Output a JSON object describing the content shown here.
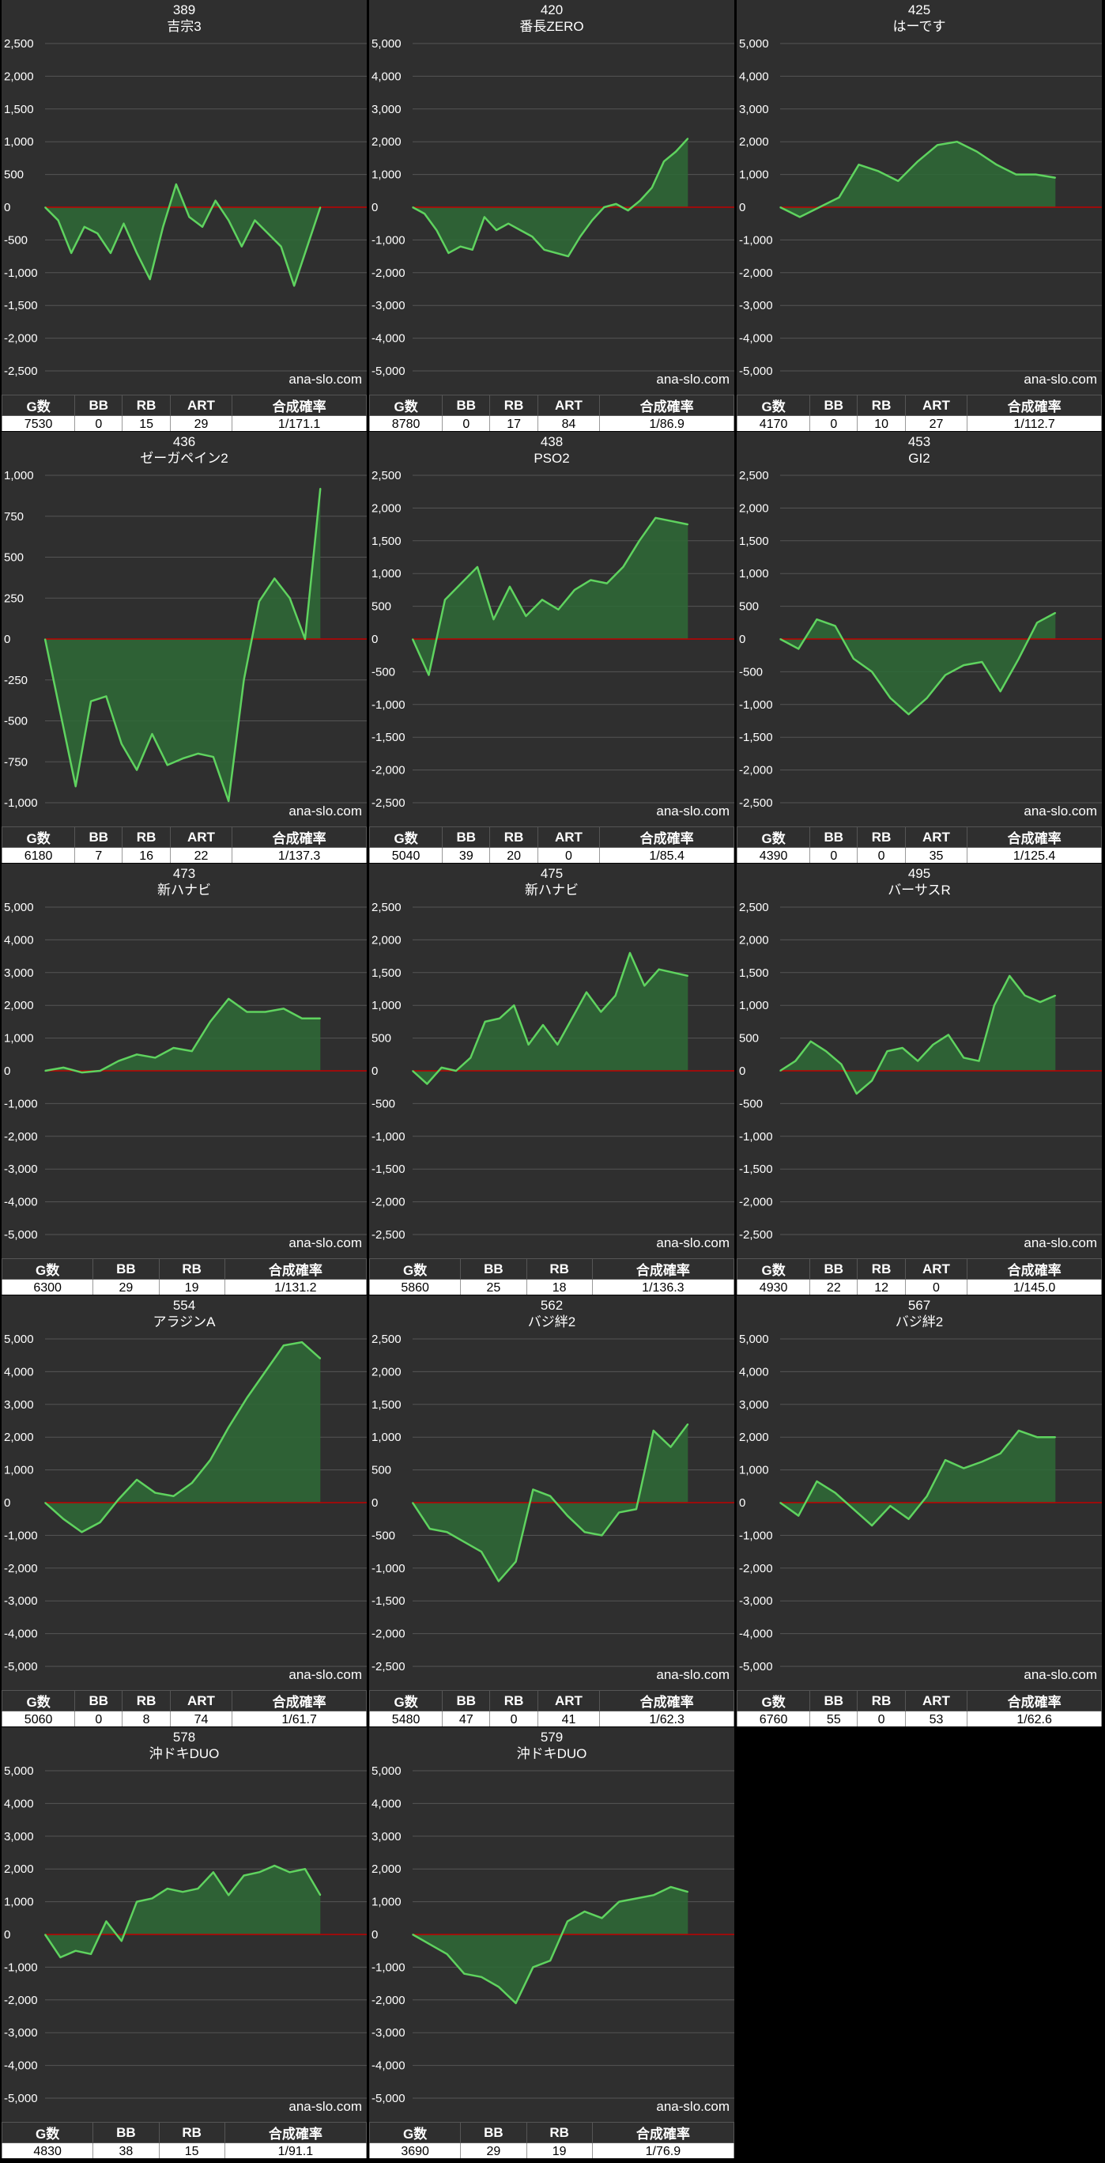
{
  "watermark": "ana-slo.com",
  "colors": {
    "line": "#5fd35f",
    "fill": "#2e6a36",
    "zero": "#c00000",
    "grid": "#555555",
    "bg": "#2f2f2f"
  },
  "chart_data": [
    {
      "type": "area",
      "number": "389",
      "name": "吉宗3",
      "ylim": [
        -2500,
        2500
      ],
      "yticks": [
        2500,
        2000,
        1500,
        1000,
        500,
        0,
        -500,
        -1000,
        -1500,
        -2000,
        -2500
      ],
      "values": [
        0,
        -200,
        -700,
        -300,
        -400,
        -700,
        -250,
        -700,
        -1100,
        -300,
        350,
        -150,
        -300,
        100,
        -200,
        -600,
        -200,
        -400,
        -600,
        -1200,
        -600,
        0
      ],
      "table": {
        "headers": [
          "G数",
          "BB",
          "RB",
          "ART",
          "合成確率"
        ],
        "values": [
          "7530",
          "0",
          "15",
          "29",
          "1/171.1"
        ]
      }
    },
    {
      "type": "area",
      "number": "420",
      "name": "番長ZERO",
      "ylim": [
        -5000,
        5000
      ],
      "yticks": [
        5000,
        4000,
        3000,
        2000,
        1000,
        0,
        -1000,
        -2000,
        -3000,
        -4000,
        -5000
      ],
      "values": [
        0,
        -200,
        -700,
        -1400,
        -1200,
        -1300,
        -300,
        -700,
        -500,
        -700,
        -900,
        -1300,
        -1400,
        -1500,
        -900,
        -400,
        0,
        100,
        -100,
        200,
        600,
        1400,
        1700,
        2100
      ],
      "table": {
        "headers": [
          "G数",
          "BB",
          "RB",
          "ART",
          "合成確率"
        ],
        "values": [
          "8780",
          "0",
          "17",
          "84",
          "1/86.9"
        ]
      }
    },
    {
      "type": "area",
      "number": "425",
      "name": "はーです",
      "ylim": [
        -5000,
        5000
      ],
      "yticks": [
        5000,
        4000,
        3000,
        2000,
        1000,
        0,
        -1000,
        -2000,
        -3000,
        -4000,
        -5000
      ],
      "values": [
        0,
        -300,
        0,
        300,
        1300,
        1100,
        800,
        1400,
        1900,
        2000,
        1700,
        1300,
        1000,
        1000,
        900
      ],
      "table": {
        "headers": [
          "G数",
          "BB",
          "RB",
          "ART",
          "合成確率"
        ],
        "values": [
          "4170",
          "0",
          "10",
          "27",
          "1/112.7"
        ]
      }
    },
    {
      "type": "area",
      "number": "436",
      "name": "ゼーガペイン2",
      "ylim": [
        -1000,
        1000
      ],
      "yticks": [
        1000,
        750,
        500,
        250,
        0,
        -250,
        -500,
        -750,
        -1000
      ],
      "values": [
        0,
        -450,
        -900,
        -380,
        -350,
        -640,
        -800,
        -580,
        -770,
        -730,
        -700,
        -720,
        -990,
        -250,
        230,
        370,
        250,
        0,
        920
      ],
      "table": {
        "headers": [
          "G数",
          "BB",
          "RB",
          "ART",
          "合成確率"
        ],
        "values": [
          "6180",
          "7",
          "16",
          "22",
          "1/137.3"
        ]
      }
    },
    {
      "type": "area",
      "number": "438",
      "name": "PSO2",
      "ylim": [
        -2500,
        2500
      ],
      "yticks": [
        2500,
        2000,
        1500,
        1000,
        500,
        0,
        -500,
        -1000,
        -1500,
        -2000,
        -2500
      ],
      "values": [
        0,
        -550,
        600,
        850,
        1100,
        300,
        800,
        350,
        600,
        450,
        750,
        900,
        850,
        1100,
        1500,
        1850,
        1800,
        1750
      ],
      "table": {
        "headers": [
          "G数",
          "BB",
          "RB",
          "ART",
          "合成確率"
        ],
        "values": [
          "5040",
          "39",
          "20",
          "0",
          "1/85.4"
        ]
      }
    },
    {
      "type": "area",
      "number": "453",
      "name": "GI2",
      "ylim": [
        -2500,
        2500
      ],
      "yticks": [
        2500,
        2000,
        1500,
        1000,
        500,
        0,
        -500,
        -1000,
        -1500,
        -2000,
        -2500
      ],
      "values": [
        0,
        -150,
        300,
        200,
        -300,
        -500,
        -900,
        -1150,
        -900,
        -550,
        -400,
        -350,
        -800,
        -300,
        250,
        400
      ],
      "table": {
        "headers": [
          "G数",
          "BB",
          "RB",
          "ART",
          "合成確率"
        ],
        "values": [
          "4390",
          "0",
          "0",
          "35",
          "1/125.4"
        ]
      }
    },
    {
      "type": "area",
      "number": "473",
      "name": "新ハナビ",
      "ylim": [
        -5000,
        5000
      ],
      "yticks": [
        5000,
        4000,
        3000,
        2000,
        1000,
        0,
        -1000,
        -2000,
        -3000,
        -4000,
        -5000
      ],
      "values": [
        0,
        100,
        -50,
        0,
        300,
        500,
        400,
        700,
        600,
        1500,
        2200,
        1800,
        1800,
        1900,
        1600,
        1600
      ],
      "table": {
        "headers": [
          "G数",
          "BB",
          "RB",
          "合成確率"
        ],
        "values": [
          "6300",
          "29",
          "19",
          "1/131.2"
        ]
      }
    },
    {
      "type": "area",
      "number": "475",
      "name": "新ハナビ",
      "ylim": [
        -2500,
        2500
      ],
      "yticks": [
        2500,
        2000,
        1500,
        1000,
        500,
        0,
        -500,
        -1000,
        -1500,
        -2000,
        -2500
      ],
      "values": [
        0,
        -200,
        50,
        0,
        200,
        750,
        800,
        1000,
        400,
        700,
        400,
        800,
        1200,
        900,
        1150,
        1800,
        1300,
        1550,
        1500,
        1450
      ],
      "table": {
        "headers": [
          "G数",
          "BB",
          "RB",
          "合成確率"
        ],
        "values": [
          "5860",
          "25",
          "18",
          "1/136.3"
        ]
      }
    },
    {
      "type": "area",
      "number": "495",
      "name": "バーサスR",
      "ylim": [
        -2500,
        2500
      ],
      "yticks": [
        2500,
        2000,
        1500,
        1000,
        500,
        0,
        -500,
        -1000,
        -1500,
        -2000,
        -2500
      ],
      "values": [
        0,
        150,
        450,
        300,
        100,
        -350,
        -150,
        300,
        350,
        150,
        400,
        550,
        200,
        150,
        1000,
        1450,
        1150,
        1050,
        1150
      ],
      "table": {
        "headers": [
          "G数",
          "BB",
          "RB",
          "ART",
          "合成確率"
        ],
        "values": [
          "4930",
          "22",
          "12",
          "0",
          "1/145.0"
        ]
      }
    },
    {
      "type": "area",
      "number": "554",
      "name": "アラジンA",
      "ylim": [
        -5000,
        5000
      ],
      "yticks": [
        5000,
        4000,
        3000,
        2000,
        1000,
        0,
        -1000,
        -2000,
        -3000,
        -4000,
        -5000
      ],
      "values": [
        0,
        -500,
        -900,
        -600,
        100,
        700,
        300,
        200,
        600,
        1300,
        2300,
        3200,
        4000,
        4800,
        4900,
        4400
      ],
      "table": {
        "headers": [
          "G数",
          "BB",
          "RB",
          "ART",
          "合成確率"
        ],
        "values": [
          "5060",
          "0",
          "8",
          "74",
          "1/61.7"
        ]
      }
    },
    {
      "type": "area",
      "number": "562",
      "name": "バジ絆2",
      "ylim": [
        -2500,
        2500
      ],
      "yticks": [
        2500,
        2000,
        1500,
        1000,
        500,
        0,
        -500,
        -1000,
        -1500,
        -2000,
        -2500
      ],
      "values": [
        0,
        -400,
        -450,
        -600,
        -750,
        -1200,
        -900,
        200,
        100,
        -200,
        -450,
        -500,
        -150,
        -100,
        1100,
        850,
        1200
      ],
      "table": {
        "headers": [
          "G数",
          "BB",
          "RB",
          "ART",
          "合成確率"
        ],
        "values": [
          "5480",
          "47",
          "0",
          "41",
          "1/62.3"
        ]
      }
    },
    {
      "type": "area",
      "number": "567",
      "name": "バジ絆2",
      "ylim": [
        -5000,
        5000
      ],
      "yticks": [
        5000,
        4000,
        3000,
        2000,
        1000,
        0,
        -1000,
        -2000,
        -3000,
        -4000,
        -5000
      ],
      "values": [
        0,
        -400,
        650,
        300,
        -200,
        -700,
        -100,
        -500,
        200,
        1300,
        1050,
        1250,
        1500,
        2200,
        2000,
        2000
      ],
      "table": {
        "headers": [
          "G数",
          "BB",
          "RB",
          "ART",
          "合成確率"
        ],
        "values": [
          "6760",
          "55",
          "0",
          "53",
          "1/62.6"
        ]
      }
    },
    {
      "type": "area",
      "number": "578",
      "name": "沖ドキDUO",
      "ylim": [
        -5000,
        5000
      ],
      "yticks": [
        5000,
        4000,
        3000,
        2000,
        1000,
        0,
        -1000,
        -2000,
        -3000,
        -4000,
        -5000
      ],
      "values": [
        0,
        -700,
        -500,
        -600,
        400,
        -200,
        1000,
        1100,
        1400,
        1300,
        1400,
        1900,
        1200,
        1800,
        1900,
        2100,
        1900,
        2000,
        1200
      ],
      "table": {
        "headers": [
          "G数",
          "BB",
          "RB",
          "合成確率"
        ],
        "values": [
          "4830",
          "38",
          "15",
          "1/91.1"
        ]
      }
    },
    {
      "type": "area",
      "number": "579",
      "name": "沖ドキDUO",
      "ylim": [
        -5000,
        5000
      ],
      "yticks": [
        5000,
        4000,
        3000,
        2000,
        1000,
        0,
        -1000,
        -2000,
        -3000,
        -4000,
        -5000
      ],
      "values": [
        0,
        -300,
        -600,
        -1200,
        -1300,
        -1600,
        -2100,
        -1000,
        -800,
        400,
        700,
        500,
        1000,
        1100,
        1200,
        1450,
        1300
      ],
      "table": {
        "headers": [
          "G数",
          "BB",
          "RB",
          "合成確率"
        ],
        "values": [
          "3690",
          "29",
          "19",
          "1/76.9"
        ]
      }
    }
  ]
}
